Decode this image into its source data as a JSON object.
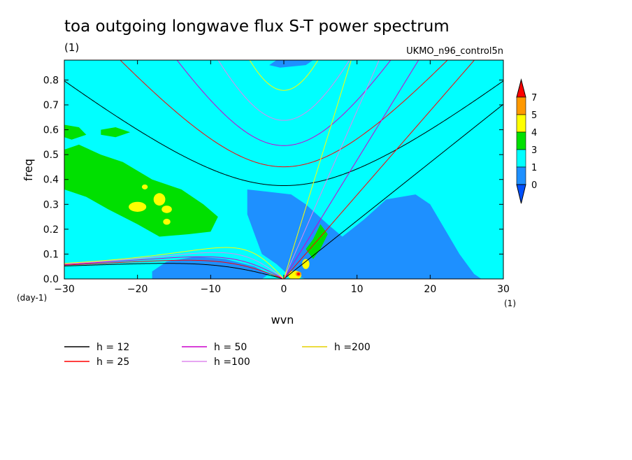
{
  "chart_data": {
    "type": "heatmap",
    "title": "toa outgoing longwave flux S-T power spectrum",
    "subtitle_left": "(1)",
    "subtitle_right": "UKMO_n96_control5n",
    "xlabel": "wvn",
    "ylabel": "freq",
    "x_units": "(1)",
    "y_units": "(day-1)",
    "xlim": [
      -30,
      30
    ],
    "ylim": [
      0,
      0.88
    ],
    "x_ticks": [
      -30,
      -20,
      -10,
      0,
      10,
      20,
      30
    ],
    "x_tick_labels": [
      "−30",
      "−20",
      "−10",
      "0",
      "10",
      "20",
      "30"
    ],
    "y_ticks": [
      0.0,
      0.1,
      0.2,
      0.3,
      0.4,
      0.5,
      0.6,
      0.7,
      0.8
    ],
    "y_tick_labels": [
      "0.0",
      "0.1",
      "0.2",
      "0.3",
      "0.4",
      "0.5",
      "0.6",
      "0.7",
      "0.8"
    ],
    "colorbar": {
      "levels": [
        "7",
        "5",
        "4",
        "3",
        "1",
        "0"
      ],
      "colors": [
        "#ff9900",
        "#ffff00",
        "#00e000",
        "#00ffff",
        "#1e90ff"
      ],
      "top_arrow_color": "#ff0000",
      "bottom_arrow_color": "#0050ff",
      "background_color": "#00ffff"
    },
    "dispersion_curves": [
      {
        "label": "h = 12",
        "h": 12,
        "color": "#000000"
      },
      {
        "label": "h = 25",
        "h": 25,
        "color": "#ff0000"
      },
      {
        "label": "h = 50",
        "h": 50,
        "color": "#cc00cc"
      },
      {
        "label": "h =100",
        "h": 100,
        "color": "#dd88ee"
      },
      {
        "label": "h =200",
        "h": 200,
        "color": "#ffff00"
      }
    ]
  }
}
